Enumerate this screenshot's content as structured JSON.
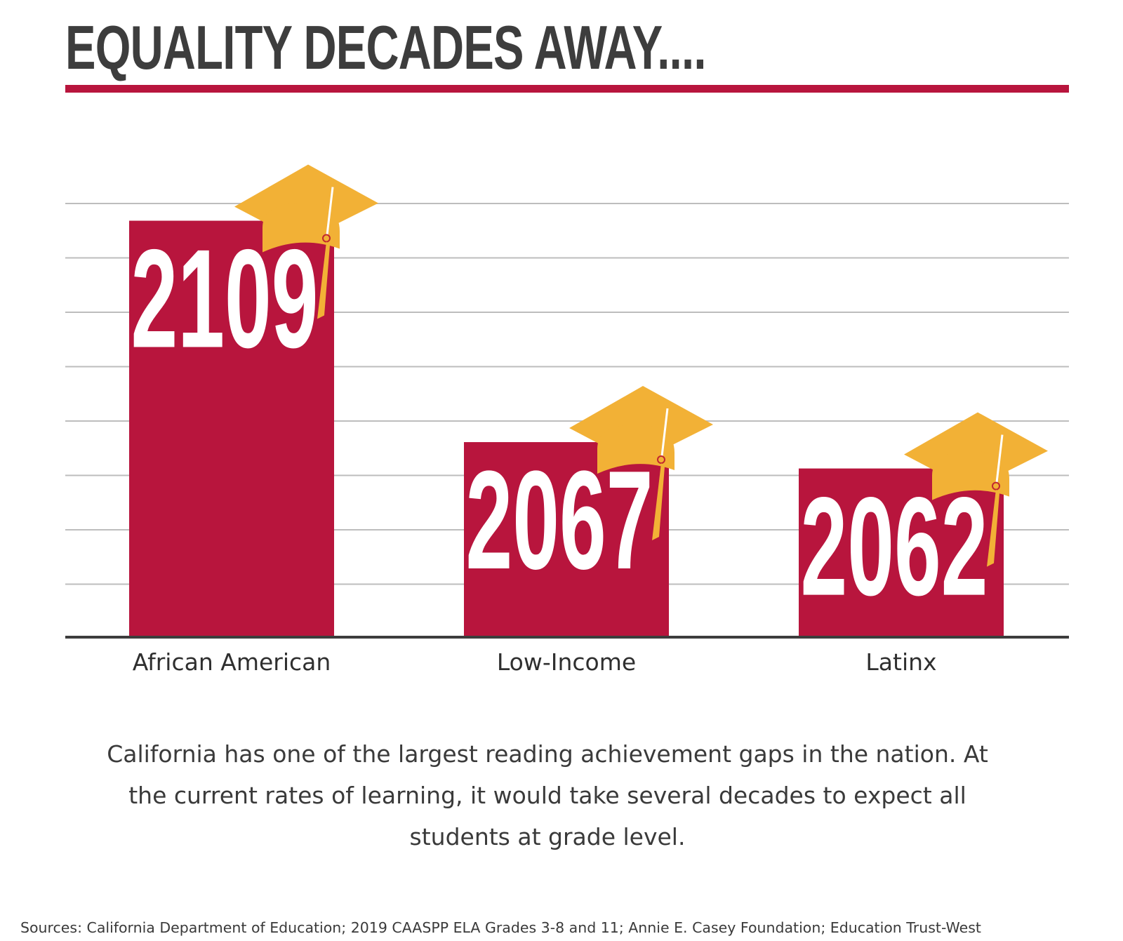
{
  "title": "EQUALITY DECADES AWAY....",
  "colors": {
    "bar": "#b8153d",
    "cap": "#f2b136",
    "title_text": "#3d3d3d",
    "rule": "#b8153d",
    "grid": "#bdbdbd",
    "axis": "#3d3d3d",
    "bar_label": "#ffffff"
  },
  "chart_data": {
    "type": "bar",
    "categories": [
      "African American",
      "Low-Income",
      "Latinx"
    ],
    "values": [
      2109,
      2067,
      2062
    ],
    "data_labels": [
      "2109",
      "2067",
      "2062"
    ],
    "title": "EQUALITY DECADES AWAY....",
    "xlabel": "",
    "ylabel": "",
    "ylim": [
      2030,
      2112
    ],
    "grid": true,
    "gridline_count": 8,
    "decoration": "graduation-cap-icon on each bar"
  },
  "caption": "California has one of the largest reading achievement gaps in the nation. At the current rates of learning, it would take several decades to expect all students at grade level.",
  "sources": "Sources: California Department of Education; 2019 CAASPP ELA Grades 3-8 and 11; Annie E. Casey Foundation; Education Trust-West"
}
